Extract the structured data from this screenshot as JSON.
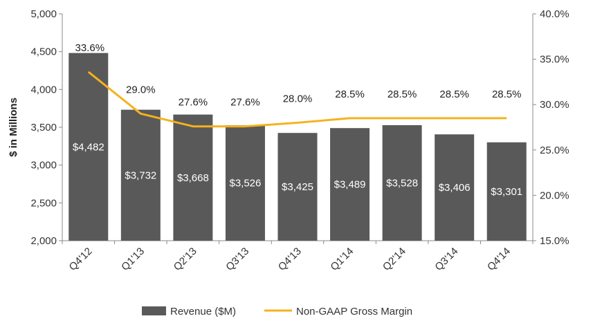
{
  "chart_data": {
    "type": "bar",
    "categories": [
      "Q4'12",
      "Q1'13",
      "Q2'13",
      "Q3'13",
      "Q4'13",
      "Q1'14",
      "Q2'14",
      "Q3'14",
      "Q4'14"
    ],
    "series": [
      {
        "name": "Revenue ($M)",
        "type": "bar",
        "axis": "left",
        "values": [
          4482,
          3732,
          3668,
          3526,
          3425,
          3489,
          3528,
          3406,
          3301
        ],
        "labels": [
          "$4,482",
          "$3,732",
          "$3,668",
          "$3,526",
          "$3,425",
          "$3,489",
          "$3,528",
          "$3,406",
          "$3,301"
        ],
        "color": "#595959"
      },
      {
        "name": "Non-GAAP Gross Margin",
        "type": "line",
        "axis": "right",
        "values": [
          33.6,
          29.0,
          27.6,
          27.6,
          28.0,
          28.5,
          28.5,
          28.5,
          28.5
        ],
        "labels": [
          "33.6%",
          "29.0%",
          "27.6%",
          "27.6%",
          "28.0%",
          "28.5%",
          "28.5%",
          "28.5%",
          "28.5%"
        ],
        "color": "#F5B21B"
      }
    ],
    "ylabel": "$ in Millions",
    "ylim": [
      2000,
      5000
    ],
    "y_ticks": [
      "2,000",
      "2,500",
      "3,000",
      "3,500",
      "4,000",
      "4,500",
      "5,000"
    ],
    "y2lim": [
      15,
      40
    ],
    "y2_ticks": [
      "15.0%",
      "20.0%",
      "25.0%",
      "30.0%",
      "35.0%",
      "40.0%"
    ],
    "grid": false,
    "legend": "bottom"
  }
}
